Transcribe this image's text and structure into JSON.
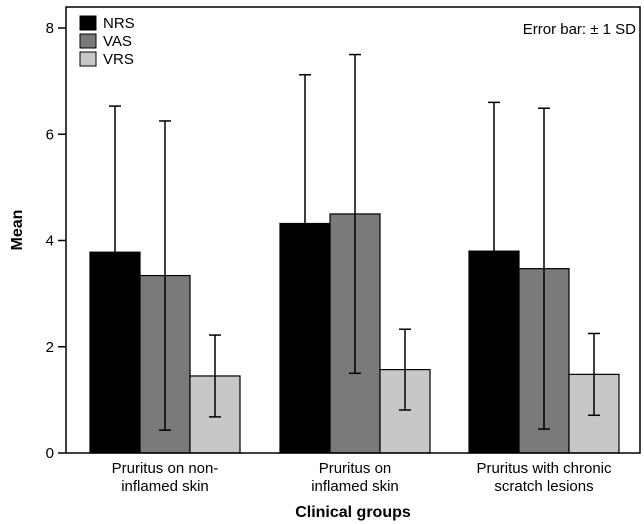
{
  "chart_data": {
    "type": "bar",
    "title": "",
    "xlabel": "Clinical groups",
    "ylabel": "Mean",
    "ylim": [
      0,
      8
    ],
    "yticks": [
      0,
      2,
      4,
      6,
      8
    ],
    "annotation": "Error bar: ± 1 SD",
    "legend_position": "top-left",
    "categories": [
      [
        "Pruritus on non-",
        "inflamed skin"
      ],
      [
        "Pruritus on",
        "inflamed skin"
      ],
      [
        "Pruritus with chronic",
        "scratch lesions"
      ]
    ],
    "series": [
      {
        "name": "NRS",
        "color": "#000000",
        "values": [
          3.78,
          4.32,
          3.8
        ],
        "sd": [
          2.75,
          2.8,
          2.8
        ]
      },
      {
        "name": "VAS",
        "color": "#7a7a7d",
        "values": [
          3.34,
          4.5,
          3.47
        ],
        "sd": [
          2.91,
          3.0,
          3.02
        ]
      },
      {
        "name": "VRS",
        "color": "#c6c7c9",
        "values": [
          1.45,
          1.57,
          1.48
        ],
        "sd": [
          0.77,
          0.76,
          0.77
        ]
      }
    ]
  }
}
